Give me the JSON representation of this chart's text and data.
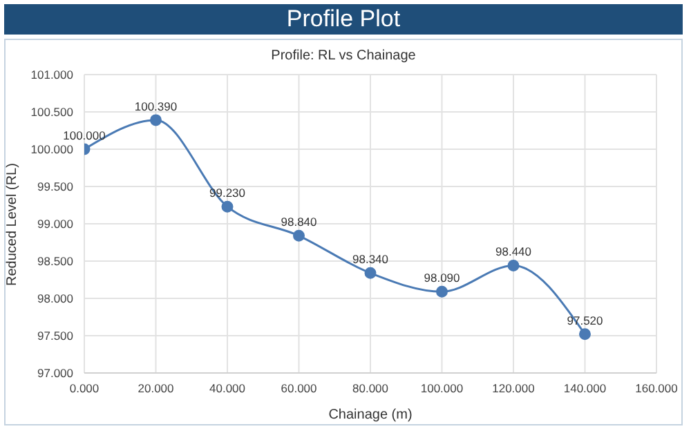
{
  "chart_data": {
    "type": "line",
    "title": "Profile Plot",
    "subtitle": "Profile: RL vs Chainage",
    "xlabel": "Chainage (m)",
    "ylabel": "Reduced Level (RL)",
    "x": [
      0,
      20,
      40,
      60,
      80,
      100,
      120,
      140
    ],
    "series": [
      {
        "color": "#4a7ab4",
        "values": [
          100.0,
          100.39,
          99.23,
          98.84,
          98.34,
          98.09,
          98.44,
          97.52
        ],
        "value_labels": [
          "100.000",
          "100.390",
          "99.230",
          "98.840",
          "98.340",
          "98.090",
          "98.440",
          "97.520"
        ]
      }
    ],
    "xlim": [
      0,
      160
    ],
    "xticks": [
      {
        "value": 0,
        "label": "0.000"
      },
      {
        "value": 20,
        "label": "20.000"
      },
      {
        "value": 40,
        "label": "40.000"
      },
      {
        "value": 60,
        "label": "60.000"
      },
      {
        "value": 80,
        "label": "80.000"
      },
      {
        "value": 100,
        "label": "100.000"
      },
      {
        "value": 120,
        "label": "120.000"
      },
      {
        "value": 140,
        "label": "140.000"
      },
      {
        "value": 160,
        "label": "160.000"
      }
    ],
    "ylim": [
      97,
      101
    ],
    "yticks": [
      {
        "value": 97,
        "label": "97.000"
      },
      {
        "value": 97.5,
        "label": "97.500"
      },
      {
        "value": 98,
        "label": "98.000"
      },
      {
        "value": 98.5,
        "label": "98.500"
      },
      {
        "value": 99,
        "label": "99.000"
      },
      {
        "value": 99.5,
        "label": "99.500"
      },
      {
        "value": 100,
        "label": "100.000"
      },
      {
        "value": 100.5,
        "label": "100.500"
      },
      {
        "value": 101,
        "label": "101.000"
      }
    ],
    "grid": true,
    "marker": "circle",
    "line_style": "solid",
    "legend": false
  }
}
